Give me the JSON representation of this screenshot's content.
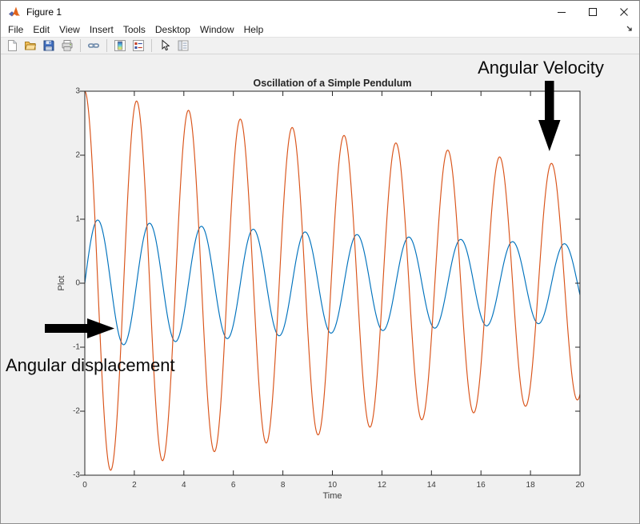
{
  "window": {
    "title": "Figure 1",
    "controls": [
      {
        "name": "minimize"
      },
      {
        "name": "maximize"
      },
      {
        "name": "close"
      }
    ]
  },
  "menu": {
    "items": [
      "File",
      "Edit",
      "View",
      "Insert",
      "Tools",
      "Desktop",
      "Window",
      "Help"
    ],
    "dock_icon": "dock-figure"
  },
  "toolbar": {
    "icons": [
      {
        "name": "new-figure-icon"
      },
      {
        "name": "open-file-icon"
      },
      {
        "name": "save-figure-icon"
      },
      {
        "name": "print-figure-icon"
      },
      {
        "name": "link-plot-icon"
      },
      {
        "name": "insert-colorbar-icon"
      },
      {
        "name": "insert-legend-icon"
      },
      {
        "name": "edit-plot-icon"
      },
      {
        "name": "property-inspector-icon"
      }
    ]
  },
  "chart_data": {
    "type": "line",
    "title": "Oscillation of a Simple Pendulum",
    "xlabel": "Time",
    "ylabel": "Plot",
    "xlim": [
      0,
      20
    ],
    "ylim": [
      -3,
      3
    ],
    "xticks": [
      0,
      2,
      4,
      6,
      8,
      10,
      12,
      14,
      16,
      18,
      20
    ],
    "yticks": [
      -3,
      -2,
      -1,
      0,
      1,
      2,
      3
    ],
    "grid": false,
    "legend": null,
    "sample_step": 0.02,
    "series": [
      {
        "name": "Angular displacement",
        "color": "#0072BD",
        "waveform": "sin",
        "amplitude": 1.0,
        "angular_frequency": 3.0,
        "damping": 0.025,
        "formula": "theta(t) = 1.0 * exp(-0.025*t) * sin(3*t)"
      },
      {
        "name": "Angular velocity",
        "color": "#D95319",
        "waveform": "cos",
        "amplitude": 3.0,
        "angular_frequency": 3.0,
        "damping": 0.025,
        "formula": "omega(t) = 3.0 * exp(-0.025*t) * cos(3*t)"
      }
    ],
    "annotations": [
      {
        "text": "Angular Velocity",
        "arrow": "down",
        "target": {
          "t": 18.85,
          "value": 2.0
        }
      },
      {
        "text": "Angular displacement",
        "arrow": "right",
        "target": {
          "t": 1.2,
          "value": -0.7
        }
      }
    ]
  },
  "colors": {
    "blue": "#0072BD",
    "orange": "#D95319",
    "figure_background": "#F0F0F0",
    "axes_background": "#FFFFFF",
    "axis_color": "#262626"
  }
}
